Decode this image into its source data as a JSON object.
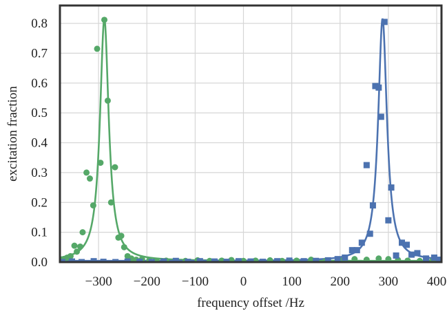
{
  "chart_data": {
    "type": "scatter",
    "title": "",
    "xlabel": "frequency offset /Hz",
    "ylabel": "excitation fraction",
    "xlim": [
      -380,
      410
    ],
    "ylim": [
      0,
      0.86
    ],
    "xticks": [
      -300,
      -200,
      -100,
      0,
      100,
      200,
      300,
      400
    ],
    "xtick_labels": [
      "−300",
      "−200",
      "−100",
      "0",
      "100",
      "200",
      "300",
      "400"
    ],
    "yticks": [
      0.0,
      0.1,
      0.2,
      0.3,
      0.4,
      0.5,
      0.6,
      0.7,
      0.8
    ],
    "ytick_labels": [
      "0.0",
      "0.1",
      "0.2",
      "0.3",
      "0.4",
      "0.5",
      "0.6",
      "0.7",
      "0.8"
    ],
    "grid": true,
    "legend": "none",
    "series": [
      {
        "color": "#55a868",
        "marker": "circle",
        "points": [
          [
            -372,
            0.01
          ],
          [
            -365,
            0.015
          ],
          [
            -358,
            0.02
          ],
          [
            -350,
            0.055
          ],
          [
            -345,
            0.035
          ],
          [
            -338,
            0.052
          ],
          [
            -333,
            0.1
          ],
          [
            -325,
            0.3
          ],
          [
            -318,
            0.28
          ],
          [
            -311,
            0.19
          ],
          [
            -303,
            0.715
          ],
          [
            -296,
            0.333
          ],
          [
            -288,
            0.812
          ],
          [
            -281,
            0.541
          ],
          [
            -274,
            0.2
          ],
          [
            -266,
            0.318
          ],
          [
            -259,
            0.082
          ],
          [
            -253,
            0.088
          ],
          [
            -247,
            0.05
          ],
          [
            -240,
            0.02
          ],
          [
            -232,
            0.012
          ],
          [
            -222,
            0.008
          ],
          [
            -210,
            0.01
          ],
          [
            -195,
            0.006
          ],
          [
            -180,
            0.004
          ],
          [
            -160,
            0.005
          ],
          [
            -140,
            0.003
          ],
          [
            -120,
            0.004
          ],
          [
            -95,
            0.006
          ],
          [
            -70,
            0.004
          ],
          [
            -45,
            0.005
          ],
          [
            -25,
            0.007
          ],
          [
            0,
            0.004
          ],
          [
            25,
            0.005
          ],
          [
            55,
            0.006
          ],
          [
            80,
            0.004
          ],
          [
            110,
            0.005
          ],
          [
            140,
            0.008
          ],
          [
            170,
            0.004
          ],
          [
            200,
            0.006
          ],
          [
            230,
            0.01
          ],
          [
            255,
            0.008
          ],
          [
            280,
            0.012
          ],
          [
            300,
            0.01
          ],
          [
            320,
            0.007
          ],
          [
            340,
            0.005
          ],
          [
            365,
            0.004
          ],
          [
            390,
            0.003
          ]
        ],
        "fit": {
          "center": -288,
          "width": 11,
          "amplitude": 0.812,
          "offset": 0.004
        }
      },
      {
        "color": "#4c72b0",
        "marker": "square",
        "points": [
          [
            -375,
            0.0
          ],
          [
            -355,
            0.002
          ],
          [
            -335,
            0.0
          ],
          [
            -310,
            0.003
          ],
          [
            -290,
            0.001
          ],
          [
            -265,
            0.0
          ],
          [
            -240,
            0.002
          ],
          [
            -215,
            0.001
          ],
          [
            -190,
            0.0
          ],
          [
            -165,
            0.002
          ],
          [
            -140,
            0.004
          ],
          [
            -115,
            0.001
          ],
          [
            -90,
            0.003
          ],
          [
            -60,
            0.002
          ],
          [
            -35,
            0.001
          ],
          [
            -10,
            0.003
          ],
          [
            15,
            0.002
          ],
          [
            40,
            0.001
          ],
          [
            70,
            0.003
          ],
          [
            95,
            0.005
          ],
          [
            125,
            0.003
          ],
          [
            150,
            0.004
          ],
          [
            175,
            0.006
          ],
          [
            195,
            0.01
          ],
          [
            210,
            0.015
          ],
          [
            225,
            0.04
          ],
          [
            235,
            0.04
          ],
          [
            245,
            0.065
          ],
          [
            255,
            0.325
          ],
          [
            262,
            0.095
          ],
          [
            268,
            0.19
          ],
          [
            273,
            0.59
          ],
          [
            280,
            0.585
          ],
          [
            285,
            0.487
          ],
          [
            292,
            0.805
          ],
          [
            300,
            0.14
          ],
          [
            306,
            0.25
          ],
          [
            316,
            0.022
          ],
          [
            328,
            0.065
          ],
          [
            338,
            0.058
          ],
          [
            348,
            0.025
          ],
          [
            360,
            0.03
          ],
          [
            378,
            0.012
          ],
          [
            395,
            0.015
          ],
          [
            405,
            0.008
          ]
        ],
        "fit": {
          "center": 288,
          "width": 11,
          "amplitude": 0.812,
          "offset": 0.004
        }
      }
    ]
  }
}
